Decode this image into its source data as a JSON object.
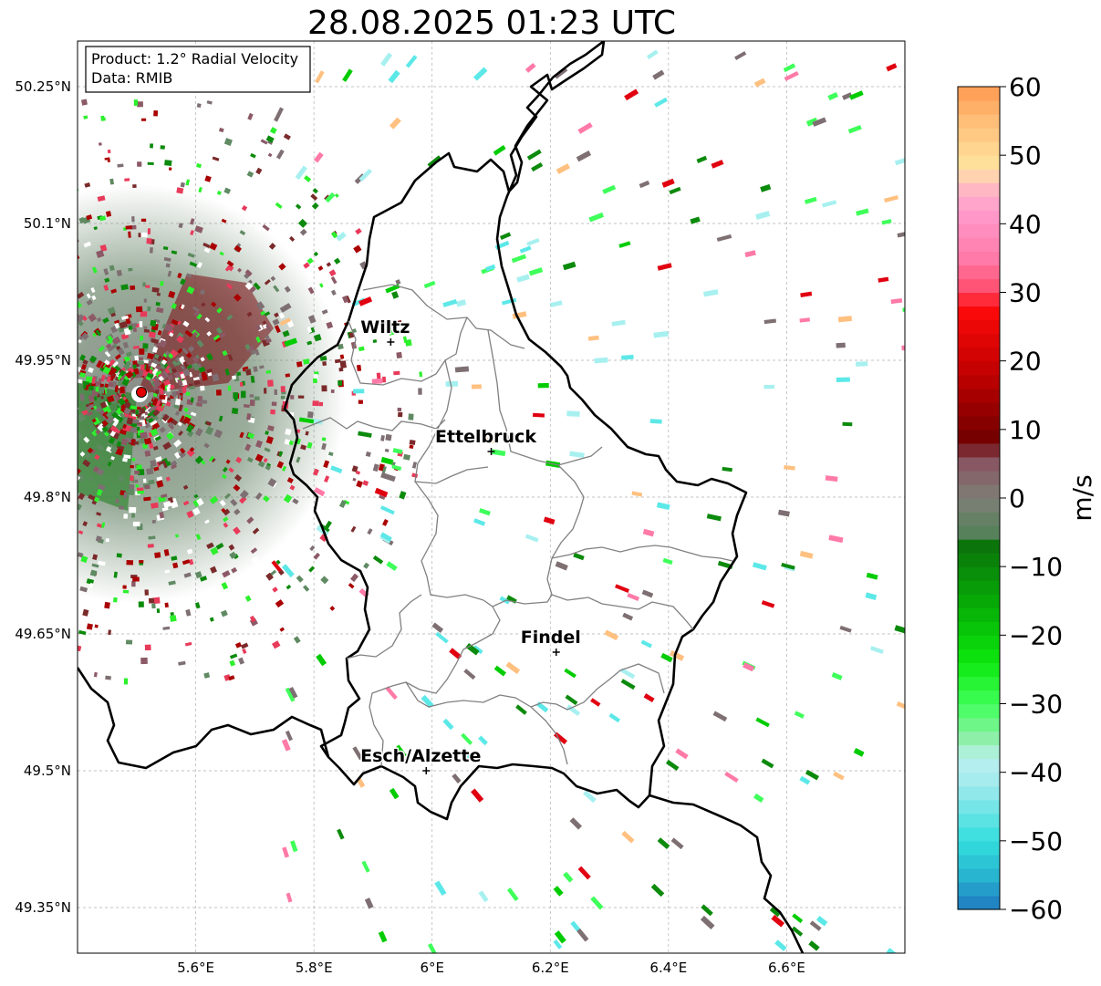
{
  "title": "28.08.2025 01:23 UTC",
  "info_box": {
    "product": "Product: 1.2° Radial Velocity",
    "data": "Data: RMIB"
  },
  "map": {
    "lon_range": [
      5.4,
      6.8
    ],
    "lat_range": [
      49.3,
      50.3
    ],
    "lat_ticks": [
      {
        "value": 50.25,
        "label": "50.25°N"
      },
      {
        "value": 50.1,
        "label": "50.1°N"
      },
      {
        "value": 49.95,
        "label": "49.95°N"
      },
      {
        "value": 49.8,
        "label": "49.8°N"
      },
      {
        "value": 49.65,
        "label": "49.65°N"
      },
      {
        "value": 49.5,
        "label": "49.5°N"
      },
      {
        "value": 49.35,
        "label": "49.35°N"
      }
    ],
    "lon_ticks": [
      {
        "value": 5.6,
        "label": "5.6°E"
      },
      {
        "value": 5.8,
        "label": "5.8°E"
      },
      {
        "value": 6.0,
        "label": "6°E"
      },
      {
        "value": 6.2,
        "label": "6.2°E"
      },
      {
        "value": 6.4,
        "label": "6.4°E"
      },
      {
        "value": 6.6,
        "label": "6.6°E"
      }
    ],
    "cities": [
      {
        "name": "Wiltz",
        "lon": 5.93,
        "lat": 49.97
      },
      {
        "name": "Ettelbruck",
        "lon": 6.1,
        "lat": 49.85
      },
      {
        "name": "Findel",
        "lon": 6.21,
        "lat": 49.63
      },
      {
        "name": "Esch/Alzette",
        "lon": 5.99,
        "lat": 49.5
      }
    ],
    "radar_site": {
      "lon": 5.505,
      "lat": 49.915
    },
    "border_color": "#000000",
    "canton_color": "#808080"
  },
  "colorbar": {
    "label": "m/s",
    "min": -60,
    "max": 60,
    "ticks": [
      {
        "value": 60,
        "label": "60"
      },
      {
        "value": 50,
        "label": "50"
      },
      {
        "value": 40,
        "label": "40"
      },
      {
        "value": 30,
        "label": "30"
      },
      {
        "value": 20,
        "label": "20"
      },
      {
        "value": 10,
        "label": "10"
      },
      {
        "value": 0,
        "label": "0"
      },
      {
        "value": -10,
        "label": "−10"
      },
      {
        "value": -20,
        "label": "−20"
      },
      {
        "value": -30,
        "label": "−30"
      },
      {
        "value": -40,
        "label": "−40"
      },
      {
        "value": -50,
        "label": "−50"
      },
      {
        "value": -60,
        "label": "−60"
      }
    ],
    "stops": [
      {
        "v": -60,
        "c": "#1f78c0"
      },
      {
        "v": -55,
        "c": "#27b5d0"
      },
      {
        "v": -50,
        "c": "#33dede"
      },
      {
        "v": -42,
        "c": "#9ee9ec"
      },
      {
        "v": -38,
        "c": "#bdf0f0"
      },
      {
        "v": -35,
        "c": "#8ef0a8"
      },
      {
        "v": -30,
        "c": "#3fff5a"
      },
      {
        "v": -24,
        "c": "#0ee80e"
      },
      {
        "v": -16,
        "c": "#06b006"
      },
      {
        "v": -6,
        "c": "#0c6e0c"
      },
      {
        "v": -5,
        "c": "#56815b"
      },
      {
        "v": 0,
        "c": "#7e7e76"
      },
      {
        "v": 6,
        "c": "#8a4f60"
      },
      {
        "v": 8,
        "c": "#6e0000"
      },
      {
        "v": 18,
        "c": "#c00000"
      },
      {
        "v": 28,
        "c": "#ff0a0a"
      },
      {
        "v": 30,
        "c": "#ff4a6a"
      },
      {
        "v": 35,
        "c": "#ff7aa8"
      },
      {
        "v": 42,
        "c": "#ff9cce"
      },
      {
        "v": 46,
        "c": "#ffc0c0"
      },
      {
        "v": 48,
        "c": "#ffe6a0"
      },
      {
        "v": 55,
        "c": "#ffbe78"
      },
      {
        "v": 60,
        "c": "#ff9a50"
      }
    ]
  }
}
